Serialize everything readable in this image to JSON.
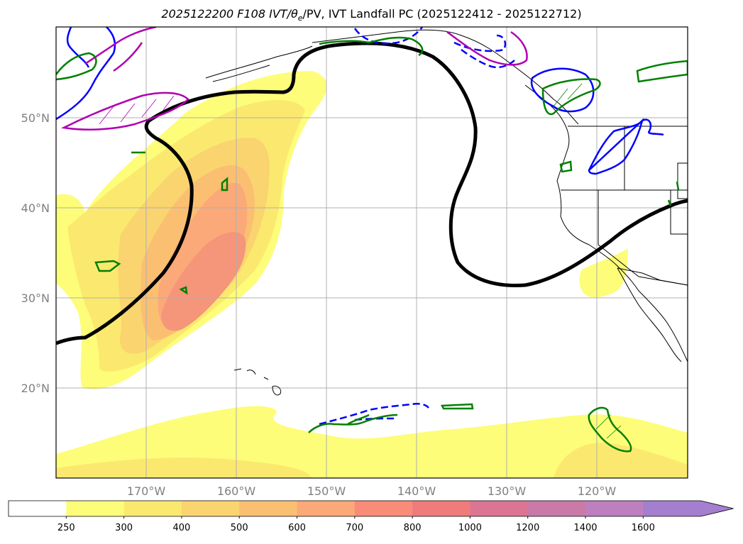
{
  "chart_data": {
    "type": "map",
    "title_prefix": "2025122200 F108 IVT/",
    "title_theta": "θ",
    "title_sub": "e",
    "title_suffix": "/PV, IVT Landfall PC (2025122412 - 2025122712)",
    "map_extent": {
      "lon": [
        -180,
        -110
      ],
      "lat": [
        10,
        60
      ]
    },
    "grid": true,
    "lat_ticks": [
      {
        "value": 20,
        "label": "20°N"
      },
      {
        "value": 30,
        "label": "30°N"
      },
      {
        "value": 40,
        "label": "40°N"
      },
      {
        "value": 50,
        "label": "50°N"
      }
    ],
    "lon_ticks": [
      {
        "value": -170,
        "label": "170°W"
      },
      {
        "value": -160,
        "label": "160°W"
      },
      {
        "value": -150,
        "label": "150°W"
      },
      {
        "value": -140,
        "label": "140°W"
      },
      {
        "value": -130,
        "label": "130°W"
      },
      {
        "value": -120,
        "label": "120°W"
      }
    ],
    "colorbar": {
      "position": "bottom",
      "extend": "max",
      "levels": [
        250,
        300,
        400,
        500,
        600,
        700,
        800,
        1000,
        1200,
        1400,
        1600
      ],
      "labels": [
        "250",
        "300",
        "400",
        "500",
        "600",
        "700",
        "800",
        "1000",
        "1200",
        "1400",
        "1600"
      ],
      "colors": [
        "#ffffff",
        "#fdfd7a",
        "#fbe96f",
        "#fad46f",
        "#fbbf72",
        "#fba978",
        "#f98c79",
        "#f07b7b",
        "#db7593",
        "#c97aa7",
        "#bd7fbf",
        "#a47fcf"
      ]
    },
    "colors": {
      "theta_pv_contour": "#000000",
      "green_contour": "#008000",
      "blue_contour": "#0000ff",
      "magenta_contour": "#b000b0",
      "gridline": "#b0b0b0",
      "coastline": "#000000"
    }
  }
}
